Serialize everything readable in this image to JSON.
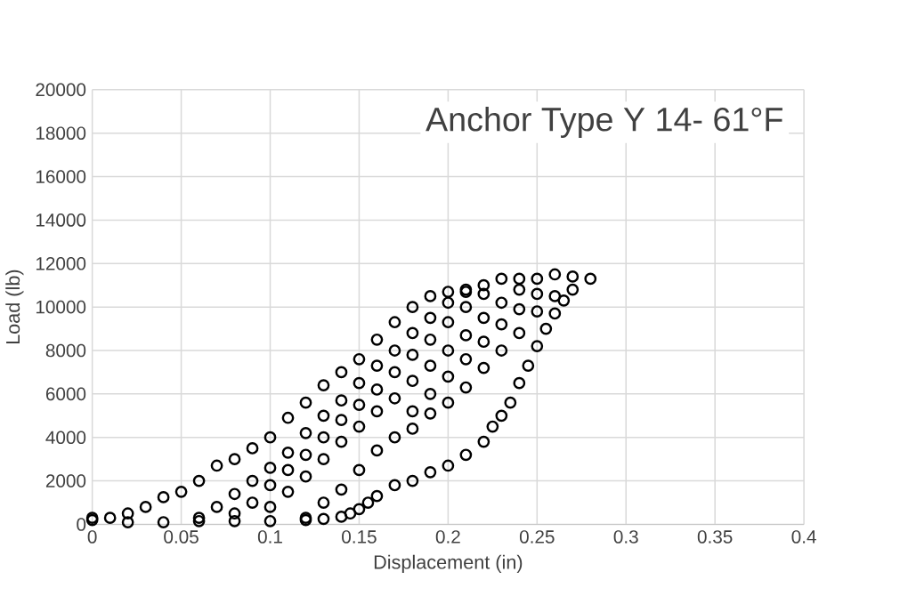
{
  "chart_data": {
    "type": "scatter",
    "title": "Anchor Type Y 14- 61°F",
    "xlabel": "Displacement (in)",
    "ylabel": "Load (lb)",
    "x": [
      0,
      0,
      0.01,
      0.02,
      0.03,
      0.04,
      0.05,
      0.06,
      0.07,
      0.08,
      0.09,
      0.1,
      0.11,
      0.12,
      0.13,
      0.14,
      0.15,
      0.16,
      0.17,
      0.18,
      0.19,
      0.2,
      0.21,
      0.22,
      0.23,
      0.24,
      0.25,
      0.26,
      0.27,
      0.28,
      0.02,
      0.04,
      0.06,
      0.08,
      0.1,
      0.12,
      0.13,
      0.14,
      0.145,
      0.15,
      0.155,
      0.16,
      0.17,
      0.18,
      0.19,
      0.2,
      0.21,
      0.22,
      0.225,
      0.23,
      0.235,
      0.24,
      0.245,
      0.25,
      0.255,
      0.26,
      0.265,
      0.27,
      0.12,
      0.13,
      0.14,
      0.15,
      0.16,
      0.17,
      0.18,
      0.19,
      0.2,
      0.21,
      0.22,
      0.23,
      0.24,
      0.25,
      0.26,
      0.08,
      0.09,
      0.1,
      0.11,
      0.12,
      0.13,
      0.14,
      0.15,
      0.16,
      0.17,
      0.18,
      0.19,
      0.2,
      0.21,
      0.22,
      0.06,
      0.07,
      0.08,
      0.09,
      0.1,
      0.11,
      0.12,
      0.13,
      0.14,
      0.15,
      0.16,
      0.17,
      0.18,
      0.19,
      0.2,
      0.21,
      0.1,
      0.11,
      0.12,
      0.13,
      0.14,
      0.15,
      0.16,
      0.17,
      0.18,
      0.19,
      0.2,
      0.21,
      0.22,
      0.23,
      0.24,
      0.18,
      0.19,
      0.2,
      0.21,
      0.22,
      0.23,
      0.24,
      0.25
    ],
    "values": [
      200,
      300,
      300,
      500,
      800,
      1250,
      1500,
      2000,
      2700,
      3000,
      3500,
      4000,
      4900,
      5600,
      6400,
      7000,
      7600,
      8500,
      9300,
      10000,
      10500,
      10700,
      10800,
      11000,
      11300,
      11300,
      11300,
      11500,
      11400,
      11300,
      100,
      100,
      150,
      150,
      150,
      200,
      250,
      350,
      500,
      700,
      1000,
      1300,
      1800,
      2000,
      2400,
      2700,
      3200,
      3800,
      4500,
      5000,
      5600,
      6500,
      7300,
      8200,
      9000,
      9700,
      10300,
      10800,
      300,
      1000,
      1600,
      2500,
      3400,
      4000,
      4400,
      5100,
      5600,
      6300,
      7200,
      8000,
      8800,
      9800,
      10500,
      500,
      1000,
      1800,
      2500,
      3200,
      4000,
      4800,
      5500,
      6200,
      7000,
      7800,
      8500,
      9300,
      10000,
      10600,
      300,
      800,
      1400,
      2000,
      2600,
      3300,
      4200,
      5000,
      5700,
      6500,
      7300,
      8000,
      8800,
      9500,
      10200,
      10700,
      800,
      1500,
      2200,
      3000,
      3800,
      4500,
      5200,
      5800,
      6600,
      7300,
      8000,
      8700,
      9500,
      10200,
      10800,
      5200,
      6000,
      6800,
      7600,
      8400,
      9200,
      9900,
      10600
    ],
    "color": "#000000",
    "marker": "circle",
    "grid": true,
    "xlim": [
      0,
      0.4
    ],
    "xticks": [
      0,
      0.05,
      0.1,
      0.15,
      0.2,
      0.25,
      0.3,
      0.35,
      0.4
    ],
    "ylim": [
      0,
      20000
    ],
    "yticks": [
      0,
      2000,
      4000,
      6000,
      8000,
      10000,
      12000,
      14000,
      16000,
      18000,
      20000
    ]
  }
}
